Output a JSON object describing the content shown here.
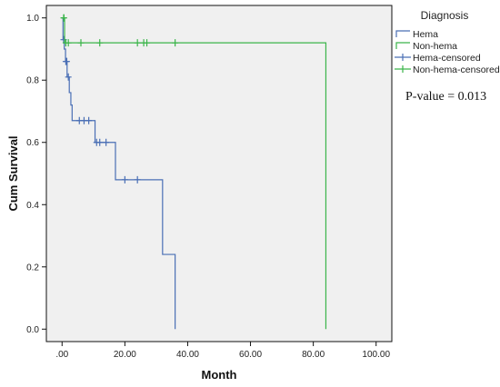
{
  "chart_data": {
    "type": "line",
    "title": "",
    "xlabel": "Month",
    "ylabel": "Cum Survival",
    "xlim": [
      -5,
      105
    ],
    "ylim": [
      -0.04,
      1.04
    ],
    "x_ticks": [
      0,
      20,
      40,
      60,
      80,
      100
    ],
    "x_tick_labels": [
      ".00",
      "20.00",
      "40.00",
      "60.00",
      "80.00",
      "100.00"
    ],
    "y_ticks": [
      0,
      0.2,
      0.4,
      0.6,
      0.8,
      1.0
    ],
    "y_tick_labels": [
      "0.0",
      "0.2",
      "0.4",
      "0.6",
      "0.8",
      "1.0"
    ],
    "grid": false,
    "legend_title": "Diagnosis",
    "legend_position": "right",
    "legend": [
      {
        "label": "Hema",
        "kind": "line",
        "color": "#4a6fb5"
      },
      {
        "label": "Non-hema",
        "kind": "line",
        "color": "#3bb54a"
      },
      {
        "label": "Hema-censored",
        "kind": "censor",
        "color": "#4a6fb5"
      },
      {
        "label": "Non-hema-censored",
        "kind": "censor",
        "color": "#3bb54a"
      }
    ],
    "annotation": "P-value = 0.013",
    "series": [
      {
        "name": "Hema",
        "color": "#4a6fb5",
        "steps": [
          [
            0,
            1.0
          ],
          [
            0.3,
            0.93
          ],
          [
            0.7,
            0.9
          ],
          [
            1.1,
            0.86
          ],
          [
            1.6,
            0.81
          ],
          [
            2.3,
            0.76
          ],
          [
            2.8,
            0.72
          ],
          [
            3.2,
            0.67
          ],
          [
            10.5,
            0.6
          ],
          [
            17.0,
            0.48
          ],
          [
            32.0,
            0.24
          ],
          [
            36.0,
            0.0
          ]
        ],
        "censored": [
          [
            0.5,
            0.93
          ],
          [
            1.2,
            0.86
          ],
          [
            1.5,
            0.86
          ],
          [
            2.0,
            0.81
          ],
          [
            5.5,
            0.67
          ],
          [
            7.0,
            0.67
          ],
          [
            8.5,
            0.67
          ],
          [
            11.0,
            0.6
          ],
          [
            12.0,
            0.6
          ],
          [
            14.0,
            0.6
          ],
          [
            20.0,
            0.48
          ],
          [
            24.0,
            0.48
          ]
        ]
      },
      {
        "name": "Non-hema",
        "color": "#3bb54a",
        "steps": [
          [
            0,
            1.0
          ],
          [
            0.8,
            0.92
          ],
          [
            84.0,
            0.0
          ]
        ],
        "censored": [
          [
            0.5,
            1.0
          ],
          [
            0.6,
            1.0
          ],
          [
            1.2,
            0.92
          ],
          [
            2.0,
            0.92
          ],
          [
            6.0,
            0.92
          ],
          [
            12.0,
            0.92
          ],
          [
            24.0,
            0.92
          ],
          [
            26.0,
            0.92
          ],
          [
            27.0,
            0.92
          ],
          [
            36.0,
            0.92
          ]
        ]
      }
    ]
  }
}
